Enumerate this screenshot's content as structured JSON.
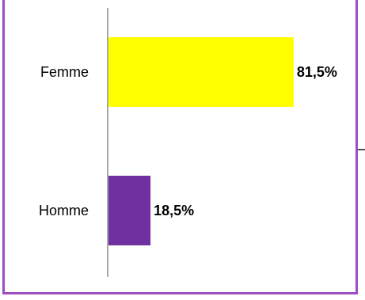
{
  "chart_data": {
    "type": "bar",
    "orientation": "horizontal",
    "categories": [
      "Femme",
      "Homme"
    ],
    "values": [
      81.5,
      18.5
    ],
    "value_labels": [
      "81,5%",
      "18,5%"
    ],
    "colors": [
      "#ffff00",
      "#7030a0"
    ],
    "title": "",
    "xlabel": "",
    "ylabel": "",
    "xlim": [
      0,
      100
    ],
    "grid": false,
    "legend": "none"
  },
  "frame_color": "#9b4fc0"
}
